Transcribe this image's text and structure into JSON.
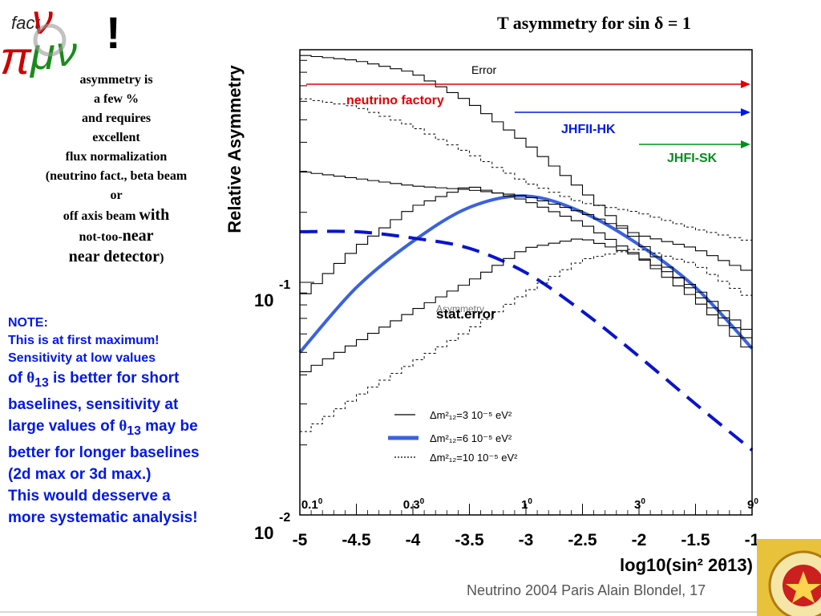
{
  "slide": {
    "exclamation": "!",
    "left_lines": [
      "asymmetry is",
      "a few %",
      "and requires",
      "excellent",
      "flux normalization",
      "(neutrino fact., beta beam",
      "or"
    ],
    "left_line9a": "off axis beam ",
    "left_line9b": "with",
    "left_line10a": "not-too-",
    "left_line10b": "near",
    "left_line11a": "near detector",
    "left_line11b": ")",
    "note_lines_small": [
      "NOTE:",
      "This is at first maximum!",
      "Sensitivity at low values"
    ],
    "note_line4a": "of ",
    "note_theta": "θ",
    "note_sub": "13",
    "note_line4b": " is better for short",
    "note_line5": "baselines, sensitivity at",
    "note_line6a": "large values of ",
    "note_line6b": " may be",
    "note_line7": "better for longer baselines",
    "note_line8": "(2d max or 3d max.)",
    "note_line9": "This would desserve a",
    "note_line10": "more systematic analysis!",
    "footer": "Neutrino 2004 Paris   Alain Blondel, 17"
  },
  "colors": {
    "red_arrow": "#e00000",
    "blue_arrow": "#0018e8",
    "green_arrow": "#00901c",
    "model_curve": "#3a62e0",
    "dashed_curve": "#0a14cc",
    "note_text": "#0018e8"
  },
  "chart_data": {
    "type": "line",
    "title": "T asymmetry for sin δ = 1",
    "xlabel": "log10(sin² 2θ13)",
    "ylabel": "Relative Asymmetry",
    "y_scale": "log",
    "xlim": [
      -5,
      -1
    ],
    "ylim": [
      0.01,
      1
    ],
    "x_ticks": [
      -5,
      -4.5,
      -4,
      -3.5,
      -3,
      -2.5,
      -2,
      -1.5,
      -1
    ],
    "y_ticks": [
      0.01,
      0.1
    ],
    "y_tick_labels": [
      {
        "base": "10",
        "exp": "-2"
      },
      {
        "base": "10",
        "exp": "-1"
      }
    ],
    "angle_labels": [
      {
        "x": -4.95,
        "label": "0.1",
        "sup": "0"
      },
      {
        "x": -4.05,
        "label": "0.3",
        "sup": "0"
      },
      {
        "x": -3.05,
        "label": "1",
        "sup": "0"
      },
      {
        "x": -2.05,
        "label": "3",
        "sup": "0"
      },
      {
        "x": -1.05,
        "label": "9",
        "sup": "0"
      }
    ],
    "annotations": {
      "error": "Error",
      "stat_error": "stat.error",
      "asymmetry_faint": "Asymmetry"
    },
    "arrows": [
      {
        "label": "neutrino factory",
        "x_start": -5,
        "x_end": -1,
        "color": "#e00000"
      },
      {
        "label": "JHFII-HK",
        "x_start": -3.1,
        "x_end": -1,
        "color": "#0018e8"
      },
      {
        "label": "JHFI-SK",
        "x_start": -2.0,
        "x_end": -1,
        "color": "#00901c"
      }
    ],
    "legend": [
      {
        "label": "Δm²₁₂=3 10⁻⁵ eV²",
        "style": "thin-solid",
        "color": "#000000"
      },
      {
        "label": "Δm²₁₂=6 10⁻⁵ eV²",
        "style": "thick-solid",
        "color": "#3a62e0"
      },
      {
        "label": "Δm²₁₂=10 10⁻⁵ eV²",
        "style": "dotted",
        "color": "#000000"
      }
    ],
    "series": [
      {
        "style": "thick-solid",
        "color": "#3a62e0",
        "x": [
          -5,
          -4.5,
          -4,
          -3.5,
          -3,
          -2.5,
          -2,
          -1.5,
          -1
        ],
        "y": [
          0.05,
          0.095,
          0.15,
          0.21,
          0.235,
          0.2,
          0.145,
          0.095,
          0.052
        ]
      },
      {
        "style": "dashed",
        "color": "#0a14cc",
        "x": [
          -5,
          -4.5,
          -4,
          -3.5,
          -3,
          -2.5,
          -2,
          -1.5,
          -1
        ],
        "y": [
          0.165,
          0.165,
          0.155,
          0.14,
          0.11,
          0.075,
          0.048,
          0.03,
          0.019
        ]
      },
      {
        "style": "steps-thin",
        "x": [
          -5,
          -4.5,
          -4,
          -3.5,
          -3,
          -2.5,
          -2,
          -1.5,
          -1
        ],
        "y": [
          0.95,
          0.9,
          0.8,
          0.6,
          0.4,
          0.25,
          0.15,
          0.09,
          0.055
        ]
      },
      {
        "style": "steps-dotted",
        "x": [
          -5,
          -4.5,
          -4,
          -3.5,
          -3,
          -2.5,
          -2,
          -1.5,
          -1
        ],
        "y": [
          0.62,
          0.57,
          0.47,
          0.36,
          0.27,
          0.22,
          0.2,
          0.17,
          0.15
        ]
      },
      {
        "style": "steps-thin",
        "x": [
          -5,
          -4.5,
          -4,
          -3.5,
          -3,
          -2.5,
          -2,
          -1.5,
          -1
        ],
        "y": [
          0.3,
          0.28,
          0.26,
          0.25,
          0.235,
          0.2,
          0.16,
          0.14,
          0.11
        ]
      },
      {
        "style": "steps-thin",
        "x": [
          -5,
          -4.5,
          -4,
          -3.5,
          -3,
          -2.5,
          -2,
          -1.5,
          -1
        ],
        "y": [
          0.085,
          0.14,
          0.21,
          0.26,
          0.225,
          0.18,
          0.13,
          0.085,
          0.05
        ]
      },
      {
        "style": "steps-thin",
        "x": [
          -5,
          -4.5,
          -4,
          -3.5,
          -3,
          -2.5,
          -2,
          -1.5,
          -1
        ],
        "y": [
          0.04,
          0.055,
          0.075,
          0.1,
          0.14,
          0.155,
          0.13,
          0.095,
          0.06
        ]
      },
      {
        "style": "steps-dotted",
        "x": [
          -5,
          -4.5,
          -4,
          -3.5,
          -3,
          -2.5,
          -2,
          -1.5,
          -1
        ],
        "y": [
          0.022,
          0.032,
          0.045,
          0.062,
          0.09,
          0.125,
          0.14,
          0.12,
          0.085
        ]
      }
    ]
  }
}
